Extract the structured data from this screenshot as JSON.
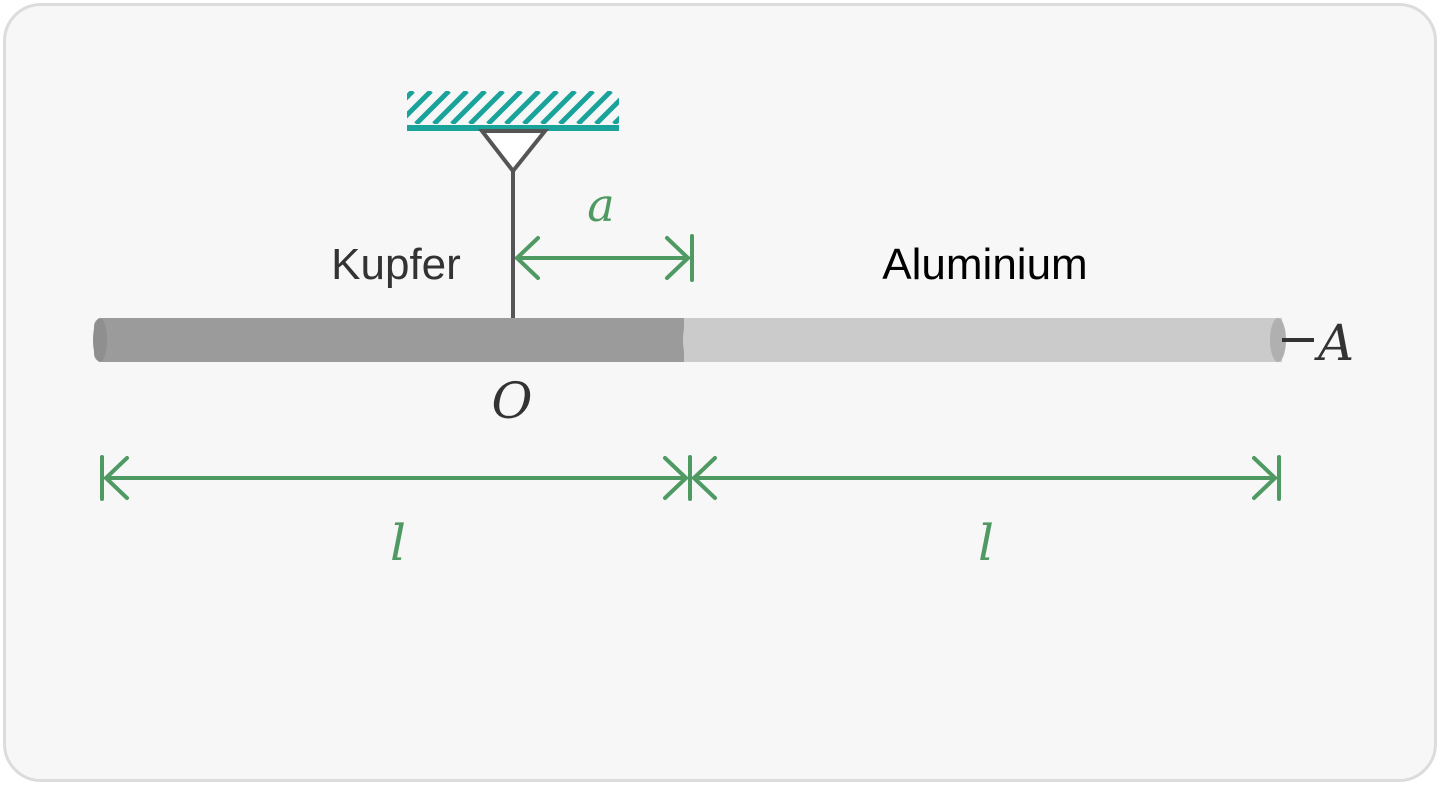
{
  "diagram": {
    "labels": {
      "left_material": "Kupfer",
      "right_material": "Aluminium",
      "pivot_point": "O",
      "end_point": "A",
      "offset_dimension": "a",
      "left_length": "l",
      "right_length": "l"
    },
    "colors": {
      "frame_background": "#f7f7f7",
      "frame_border": "#dcdcdc",
      "ceiling_hatch": "#1aa39a",
      "copper_segment": "#9b9b9b",
      "aluminium_segment": "#cbcbcb",
      "dimension": "#4f9a63",
      "suspension": "#555555",
      "text_dark": "#333333",
      "text_black": "#000000"
    },
    "icons": {
      "ceiling_mount": "hatched-ceiling-icon",
      "pivot_hanger": "triangle-hanger-icon"
    }
  }
}
